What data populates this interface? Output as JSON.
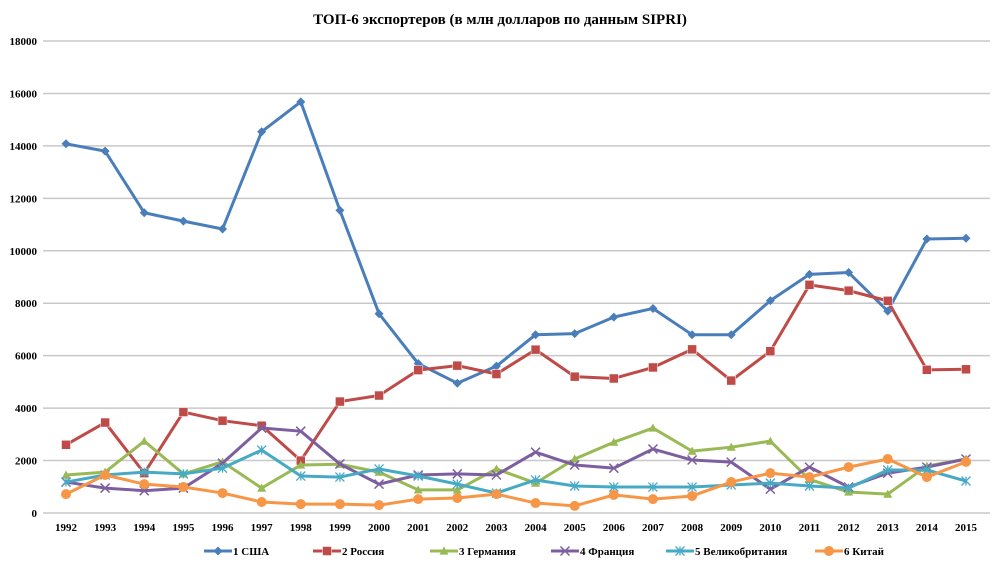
{
  "chart_data": {
    "type": "line",
    "title": "ТОП-6 экспортеров (в млн долларов по данным SIPRI)",
    "xlabel": "",
    "ylabel": "",
    "ylim": [
      0,
      18000
    ],
    "yticks": [
      0,
      2000,
      4000,
      6000,
      8000,
      10000,
      12000,
      14000,
      16000,
      18000
    ],
    "grid": true,
    "legend_position": "bottom",
    "categories": [
      "1992",
      "1993",
      "1994",
      "1995",
      "1996",
      "1997",
      "1998",
      "1999",
      "2000",
      "2001",
      "2002",
      "2003",
      "2004",
      "2005",
      "2006",
      "2007",
      "2008",
      "2009",
      "2010",
      "2011",
      "2012",
      "2013",
      "2014",
      "2015"
    ],
    "series": [
      {
        "name": "1 США",
        "color": "#4a7ebb",
        "marker": "diamond",
        "values": [
          14080,
          13800,
          11450,
          11130,
          10830,
          14540,
          15680,
          11540,
          7600,
          5700,
          4950,
          5600,
          6800,
          6840,
          7470,
          7800,
          6800,
          6800,
          8100,
          9100,
          9170,
          7700,
          10450,
          10480
        ]
      },
      {
        "name": "2 Россия",
        "color": "#be4b48",
        "marker": "square",
        "values": [
          2600,
          3450,
          1520,
          3850,
          3520,
          3330,
          2000,
          4250,
          4480,
          5450,
          5620,
          5300,
          6230,
          5200,
          5130,
          5550,
          6240,
          5050,
          6170,
          8700,
          8480,
          8090,
          5460,
          5480
        ]
      },
      {
        "name": "3 Германия",
        "color": "#98b954",
        "marker": "triangle",
        "values": [
          1450,
          1560,
          2740,
          1490,
          1950,
          950,
          1830,
          1860,
          1560,
          880,
          880,
          1680,
          1140,
          2060,
          2700,
          3240,
          2360,
          2510,
          2740,
          1280,
          800,
          720,
          1790,
          2060
        ]
      },
      {
        "name": "4 Франция",
        "color": "#7d5fa0",
        "marker": "x",
        "values": [
          1180,
          950,
          850,
          950,
          1900,
          3240,
          3120,
          1870,
          1100,
          1450,
          1490,
          1450,
          2320,
          1830,
          1710,
          2440,
          2020,
          1940,
          910,
          1750,
          990,
          1520,
          1750,
          2060
        ]
      },
      {
        "name": "5 Великобритания",
        "color": "#46aac5",
        "marker": "asterisk",
        "values": [
          1180,
          1450,
          1560,
          1490,
          1710,
          2400,
          1410,
          1370,
          1680,
          1410,
          1100,
          760,
          1260,
          1030,
          990,
          990,
          990,
          1070,
          1140,
          1030,
          950,
          1640,
          1640,
          1220
        ]
      },
      {
        "name": "6 Китай",
        "color": "#f79646",
        "marker": "circle",
        "values": [
          720,
          1450,
          1100,
          990,
          760,
          420,
          340,
          340,
          300,
          530,
          570,
          720,
          380,
          270,
          690,
          530,
          650,
          1180,
          1520,
          1370,
          1750,
          2060,
          1370,
          1950
        ]
      }
    ]
  }
}
